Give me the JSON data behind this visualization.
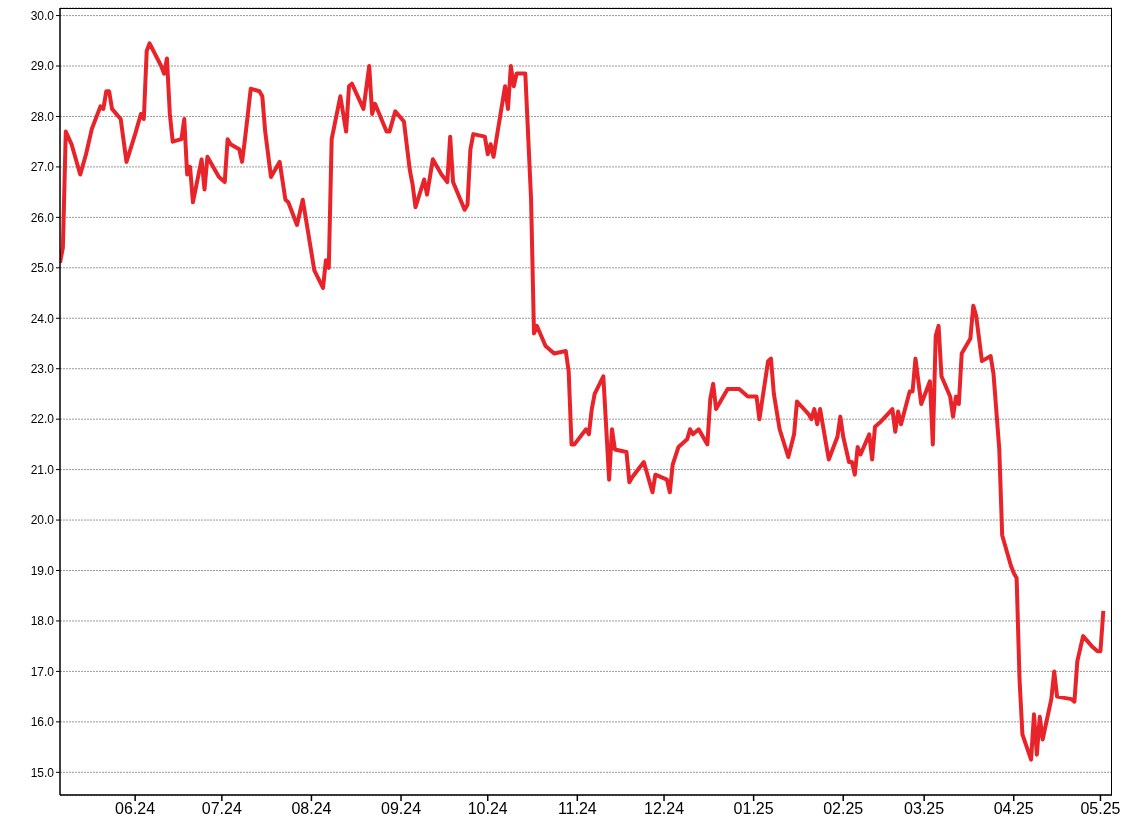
{
  "chart_data": {
    "type": "line",
    "x": [
      "2024-05-06",
      "2024-05-07",
      "2024-05-08",
      "2024-05-10",
      "2024-05-13",
      "2024-05-15",
      "2024-05-17",
      "2024-05-20",
      "2024-05-21",
      "2024-05-22",
      "2024-05-23",
      "2024-05-24",
      "2024-05-27",
      "2024-05-29",
      "2024-06-01",
      "2024-06-03",
      "2024-06-04",
      "2024-06-05",
      "2024-06-06",
      "2024-06-10",
      "2024-06-11",
      "2024-06-12",
      "2024-06-13",
      "2024-06-14",
      "2024-06-17",
      "2024-06-18",
      "2024-06-19",
      "2024-06-20",
      "2024-06-21",
      "2024-06-24",
      "2024-06-25",
      "2024-06-26",
      "2024-06-30",
      "2024-07-02",
      "2024-07-03",
      "2024-07-04",
      "2024-07-07",
      "2024-07-08",
      "2024-07-09",
      "2024-07-11",
      "2024-07-14",
      "2024-07-15",
      "2024-07-16",
      "2024-07-18",
      "2024-07-21",
      "2024-07-23",
      "2024-07-24",
      "2024-07-27",
      "2024-07-29",
      "2024-08-02",
      "2024-08-05",
      "2024-08-06",
      "2024-08-07",
      "2024-08-08",
      "2024-08-11",
      "2024-08-13",
      "2024-08-14",
      "2024-08-15",
      "2024-08-19",
      "2024-08-21",
      "2024-08-22",
      "2024-08-23",
      "2024-08-27",
      "2024-08-28",
      "2024-08-30",
      "2024-09-02",
      "2024-09-04",
      "2024-09-05",
      "2024-09-06",
      "2024-09-09",
      "2024-09-10",
      "2024-09-12",
      "2024-09-15",
      "2024-09-17",
      "2024-09-18",
      "2024-09-19",
      "2024-09-23",
      "2024-09-24",
      "2024-09-25",
      "2024-09-26",
      "2024-09-30",
      "2024-10-01",
      "2024-10-02",
      "2024-10-03",
      "2024-10-07",
      "2024-10-08",
      "2024-10-09",
      "2024-10-10",
      "2024-10-11",
      "2024-10-14",
      "2024-10-16",
      "2024-10-17",
      "2024-10-18",
      "2024-10-21",
      "2024-10-23",
      "2024-10-24",
      "2024-10-28",
      "2024-10-29",
      "2024-10-30",
      "2024-10-31",
      "2024-11-04",
      "2024-11-05",
      "2024-11-06",
      "2024-11-07",
      "2024-11-10",
      "2024-11-12",
      "2024-11-13",
      "2024-11-14",
      "2024-11-18",
      "2024-11-19",
      "2024-11-20",
      "2024-11-24",
      "2024-11-27",
      "2024-11-28",
      "2024-12-02",
      "2024-12-03",
      "2024-12-04",
      "2024-12-06",
      "2024-12-09",
      "2024-12-10",
      "2024-12-11",
      "2024-12-13",
      "2024-12-16",
      "2024-12-17",
      "2024-12-18",
      "2024-12-19",
      "2024-12-23",
      "2024-12-27",
      "2024-12-30",
      "2025-01-02",
      "2025-01-03",
      "2025-01-06",
      "2025-01-07",
      "2025-01-08",
      "2025-01-10",
      "2025-01-13",
      "2025-01-15",
      "2025-01-16",
      "2025-01-20",
      "2025-01-21",
      "2025-01-22",
      "2025-01-23",
      "2025-01-24",
      "2025-01-27",
      "2025-01-30",
      "2025-01-31",
      "2025-02-01",
      "2025-02-03",
      "2025-02-04",
      "2025-02-05",
      "2025-02-06",
      "2025-02-07",
      "2025-02-10",
      "2025-02-11",
      "2025-02-12",
      "2025-02-14",
      "2025-02-18",
      "2025-02-19",
      "2025-02-20",
      "2025-02-21",
      "2025-02-24",
      "2025-02-25",
      "2025-02-26",
      "2025-02-28",
      "2025-03-03",
      "2025-03-04",
      "2025-03-05",
      "2025-03-06",
      "2025-03-07",
      "2025-03-10",
      "2025-03-11",
      "2025-03-12",
      "2025-03-13",
      "2025-03-14",
      "2025-03-17",
      "2025-03-18",
      "2025-03-19",
      "2025-03-21",
      "2025-03-24",
      "2025-03-25",
      "2025-03-27",
      "2025-03-28",
      "2025-03-31",
      "2025-04-01",
      "2025-04-02",
      "2025-04-03",
      "2025-04-04",
      "2025-04-07",
      "2025-04-08",
      "2025-04-09",
      "2025-04-10",
      "2025-04-11",
      "2025-04-14",
      "2025-04-15",
      "2025-04-16",
      "2025-04-21",
      "2025-04-22",
      "2025-04-23",
      "2025-04-25",
      "2025-04-28",
      "2025-04-30",
      "2025-05-01",
      "2025-05-02"
    ],
    "series": [
      {
        "color": "#e8242a",
        "values": [
          25.1,
          25.4,
          27.7,
          27.45,
          26.85,
          27.25,
          27.75,
          28.2,
          28.15,
          28.5,
          28.5,
          28.15,
          27.95,
          27.1,
          27.65,
          28.05,
          27.95,
          29.3,
          29.45,
          29.0,
          28.85,
          29.15,
          28.05,
          27.5,
          27.55,
          27.95,
          26.85,
          27.0,
          26.3,
          27.15,
          26.55,
          27.2,
          26.8,
          26.7,
          27.55,
          27.45,
          27.35,
          27.1,
          27.55,
          28.55,
          28.5,
          28.4,
          27.7,
          26.8,
          27.1,
          26.35,
          26.3,
          25.85,
          26.35,
          24.95,
          24.6,
          25.15,
          25.0,
          27.55,
          28.4,
          27.7,
          28.6,
          28.65,
          28.15,
          29.0,
          28.05,
          28.25,
          27.7,
          27.7,
          28.1,
          27.9,
          26.95,
          26.65,
          26.2,
          26.75,
          26.45,
          27.15,
          26.85,
          26.7,
          27.6,
          26.7,
          26.15,
          26.25,
          27.35,
          27.65,
          27.6,
          27.25,
          27.45,
          27.2,
          28.6,
          28.15,
          29.0,
          28.6,
          28.85,
          28.85,
          26.35,
          23.7,
          23.85,
          23.45,
          23.35,
          23.3,
          23.35,
          22.95,
          21.5,
          21.5,
          21.8,
          21.7,
          22.2,
          22.5,
          22.85,
          20.8,
          21.8,
          21.4,
          21.35,
          20.75,
          20.85,
          21.15,
          20.55,
          20.9,
          20.8,
          20.55,
          21.1,
          21.45,
          21.6,
          21.8,
          21.7,
          21.8,
          21.5,
          22.4,
          22.7,
          22.2,
          22.6,
          22.6,
          22.45,
          22.45,
          22.0,
          23.15,
          23.2,
          22.5,
          21.8,
          21.25,
          21.7,
          22.35,
          22.1,
          22.0,
          22.2,
          21.9,
          22.2,
          21.2,
          21.65,
          22.05,
          21.65,
          21.15,
          21.15,
          20.9,
          21.45,
          21.3,
          21.7,
          21.2,
          21.85,
          21.95,
          22.2,
          21.75,
          22.15,
          21.9,
          22.55,
          22.55,
          23.2,
          22.3,
          22.75,
          21.5,
          23.65,
          23.85,
          22.85,
          22.45,
          22.05,
          22.45,
          22.3,
          23.3,
          23.6,
          24.25,
          24.05,
          23.15,
          23.25,
          22.9,
          21.4,
          19.7,
          19.1,
          18.95,
          18.85,
          16.85,
          15.75,
          15.25,
          16.15,
          15.35,
          16.1,
          15.65,
          16.45,
          17.0,
          16.5,
          16.45,
          16.4,
          17.2,
          17.7,
          17.5,
          17.4,
          17.4,
          18.2
        ]
      }
    ],
    "xlim": [
      "2024-05-06",
      "2025-05-05"
    ],
    "xticks": [
      {
        "value": "2024-06-01",
        "label": "06.24"
      },
      {
        "value": "2024-07-01",
        "label": "07.24"
      },
      {
        "value": "2024-08-01",
        "label": "08.24"
      },
      {
        "value": "2024-09-01",
        "label": "09.24"
      },
      {
        "value": "2024-10-01",
        "label": "10.24"
      },
      {
        "value": "2024-11-01",
        "label": "11.24"
      },
      {
        "value": "2024-12-01",
        "label": "12.24"
      },
      {
        "value": "2025-01-01",
        "label": "01.25"
      },
      {
        "value": "2025-02-01",
        "label": "02.25"
      },
      {
        "value": "2025-03-01",
        "label": "03.25"
      },
      {
        "value": "2025-04-01",
        "label": "04.25"
      },
      {
        "value": "2025-05-01",
        "label": "05.25"
      }
    ],
    "ylim": [
      14.55,
      30.15
    ],
    "yticks": [
      {
        "value": 15,
        "label": "15.0"
      },
      {
        "value": 16,
        "label": "16.0"
      },
      {
        "value": 17,
        "label": "17.0"
      },
      {
        "value": 18,
        "label": "18.0"
      },
      {
        "value": 19,
        "label": "19.0"
      },
      {
        "value": 20,
        "label": "20.0"
      },
      {
        "value": 21,
        "label": "21.0"
      },
      {
        "value": 22,
        "label": "22.0"
      },
      {
        "value": 23,
        "label": "23.0"
      },
      {
        "value": 24,
        "label": "24.0"
      },
      {
        "value": 25,
        "label": "25.0"
      },
      {
        "value": 26,
        "label": "26.0"
      },
      {
        "value": 27,
        "label": "27.0"
      },
      {
        "value": 28,
        "label": "28.0"
      },
      {
        "value": 29,
        "label": "29.0"
      },
      {
        "value": 30,
        "label": "30.0"
      }
    ],
    "grid": "y",
    "marker": "none",
    "line_style": "solid"
  }
}
